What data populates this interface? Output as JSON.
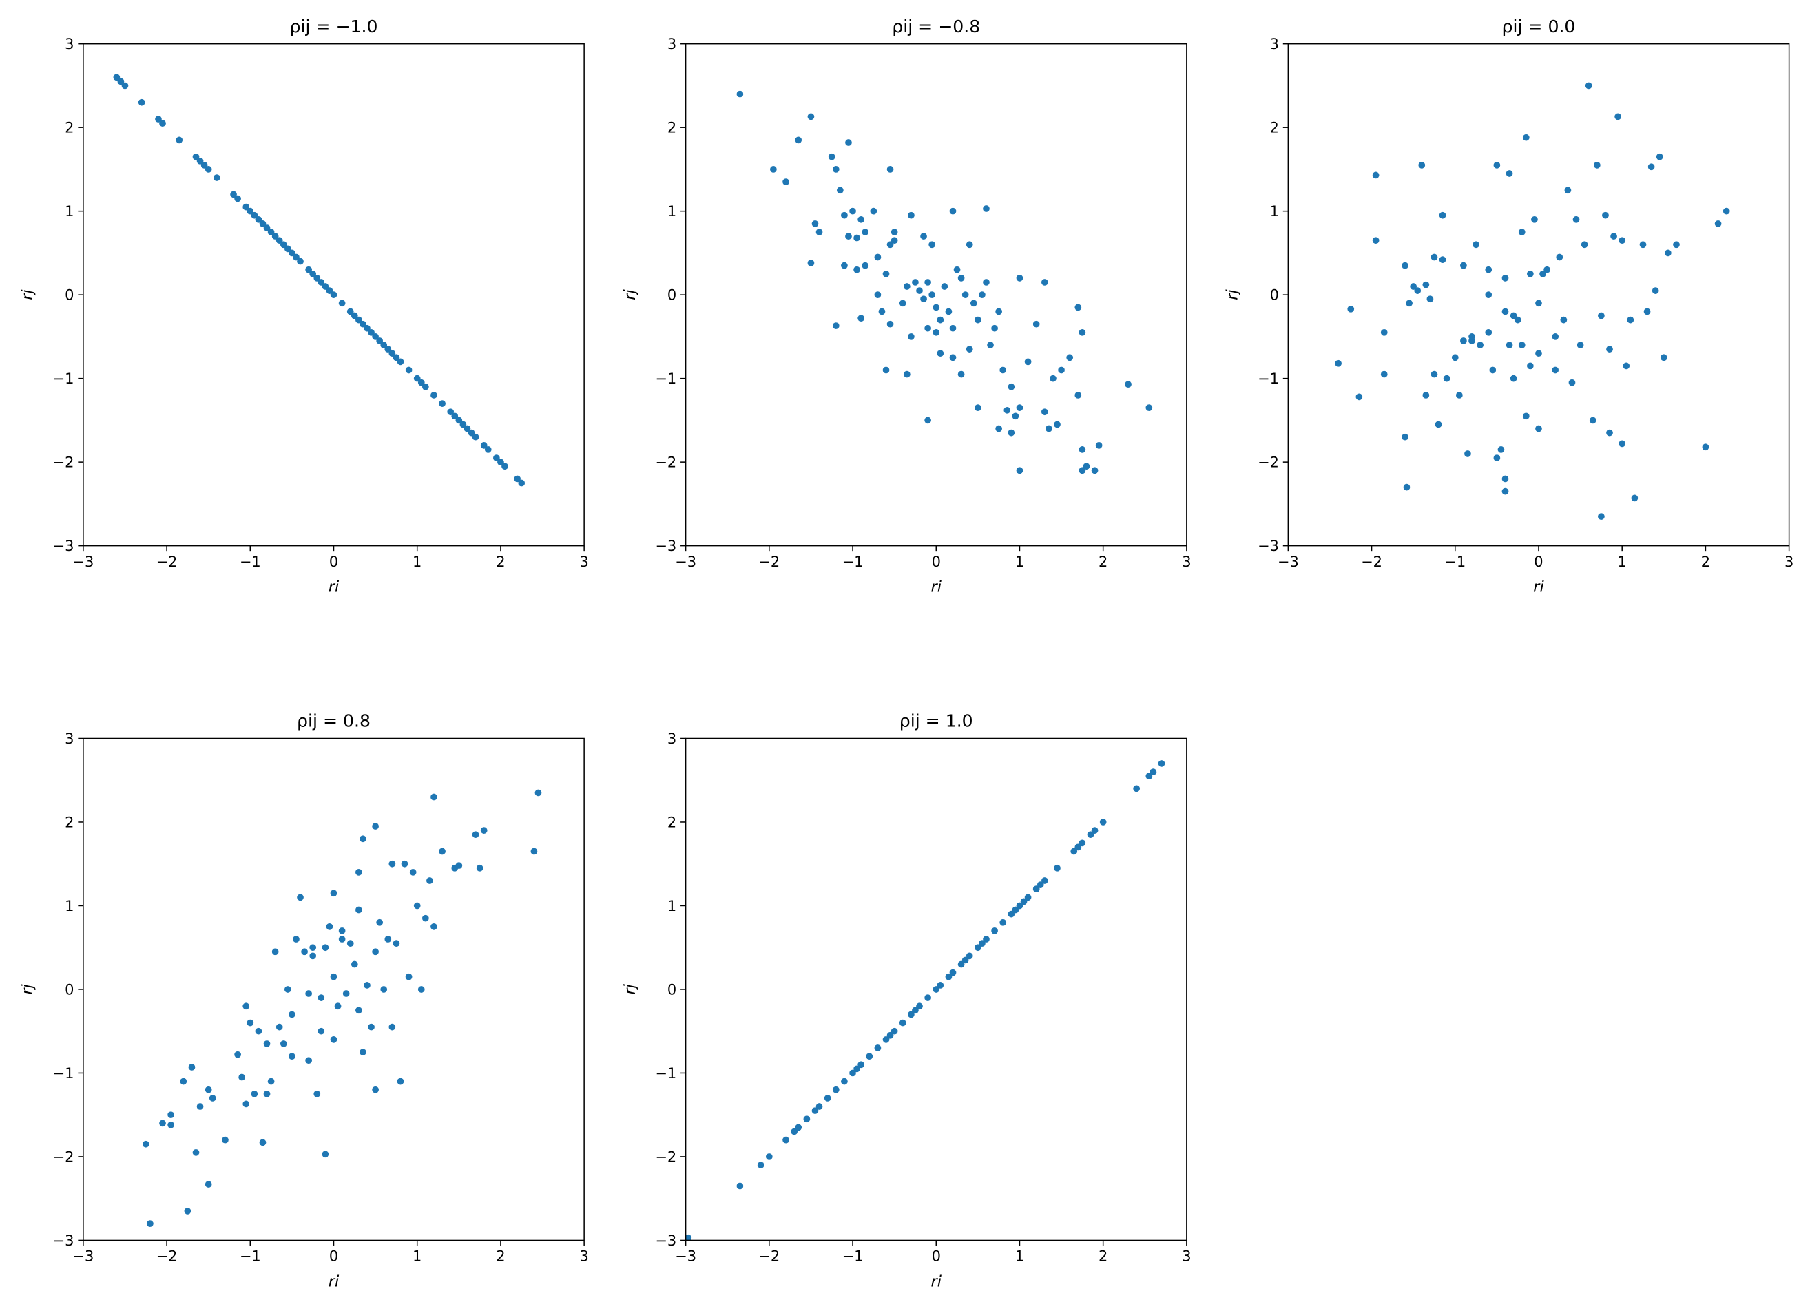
{
  "chart_data": [
    {
      "type": "scatter",
      "title": "ρij = −1.0",
      "x_label": "ri",
      "y_label": "rj",
      "color": "#1f77b4",
      "xlim": [
        -3,
        3
      ],
      "ylim": [
        -3,
        3
      ],
      "xticks": [
        {
          "value": -3,
          "label": "−3"
        },
        {
          "value": -2,
          "label": "−2"
        },
        {
          "value": -1,
          "label": "−1"
        },
        0,
        1,
        2,
        3
      ],
      "yticks": [
        {
          "value": -3,
          "label": "−3"
        },
        {
          "value": -2,
          "label": "−2"
        },
        {
          "value": -1,
          "label": "−1"
        },
        0,
        1,
        2,
        3
      ],
      "x": [
        -2.6,
        -2.55,
        -2.5,
        -2.3,
        -2.1,
        -2.05,
        -1.85,
        -1.65,
        -1.6,
        -1.55,
        -1.5,
        -1.4,
        -1.2,
        -1.15,
        -1.05,
        -1.0,
        -0.95,
        -0.9,
        -0.85,
        -0.8,
        -0.75,
        -0.7,
        -0.65,
        -0.6,
        -0.55,
        -0.5,
        -0.45,
        -0.4,
        -0.3,
        -0.25,
        -0.2,
        -0.15,
        -0.1,
        -0.05,
        0.0,
        0.1,
        0.2,
        0.25,
        0.3,
        0.35,
        0.4,
        0.45,
        0.5,
        0.55,
        0.6,
        0.65,
        0.7,
        0.75,
        0.8,
        0.9,
        1.0,
        1.05,
        1.1,
        1.2,
        1.3,
        1.4,
        1.45,
        1.5,
        1.55,
        1.6,
        1.65,
        1.7,
        1.8,
        1.85,
        1.95,
        2.0,
        2.05,
        2.2,
        2.25
      ],
      "y": [
        2.6,
        2.55,
        2.5,
        2.3,
        2.1,
        2.05,
        1.85,
        1.65,
        1.6,
        1.55,
        1.5,
        1.4,
        1.2,
        1.15,
        1.05,
        1.0,
        0.95,
        0.9,
        0.85,
        0.8,
        0.75,
        0.7,
        0.65,
        0.6,
        0.55,
        0.5,
        0.45,
        0.4,
        0.3,
        0.25,
        0.2,
        0.15,
        0.1,
        0.05,
        0.0,
        -0.1,
        -0.2,
        -0.25,
        -0.3,
        -0.35,
        -0.4,
        -0.45,
        -0.5,
        -0.55,
        -0.6,
        -0.65,
        -0.7,
        -0.75,
        -0.8,
        -0.9,
        -1.0,
        -1.05,
        -1.1,
        -1.2,
        -1.3,
        -1.4,
        -1.45,
        -1.5,
        -1.55,
        -1.6,
        -1.65,
        -1.7,
        -1.8,
        -1.85,
        -1.95,
        -2.0,
        -2.05,
        -2.2,
        -2.25
      ]
    },
    {
      "type": "scatter",
      "title": "ρij = −0.8",
      "x_label": "ri",
      "y_label": "rj",
      "color": "#1f77b4",
      "xlim": [
        -3,
        3
      ],
      "ylim": [
        -3,
        3
      ],
      "xticks": [
        {
          "value": -3,
          "label": "−3"
        },
        {
          "value": -2,
          "label": "−2"
        },
        {
          "value": -1,
          "label": "−1"
        },
        0,
        1,
        2,
        3
      ],
      "yticks": [
        {
          "value": -3,
          "label": "−3"
        },
        {
          "value": -2,
          "label": "−2"
        },
        {
          "value": -1,
          "label": "−1"
        },
        0,
        1,
        2,
        3
      ],
      "x": [
        -2.35,
        -1.95,
        -1.8,
        -1.65,
        -1.5,
        -1.45,
        -1.4,
        -1.5,
        -1.25,
        -1.2,
        -1.15,
        -1.05,
        -1.1,
        -1.0,
        -1.05,
        -0.95,
        -0.9,
        -0.85,
        -0.75,
        -0.55,
        -0.5,
        -0.55,
        -0.5,
        -0.3,
        -0.15,
        -0.05,
        0.2,
        0.6,
        -1.1,
        -0.95,
        -0.85,
        -0.7,
        -0.6,
        -0.9,
        -1.2,
        -0.65,
        -0.7,
        -0.55,
        -0.4,
        -0.35,
        -0.25,
        -0.2,
        -0.15,
        -0.1,
        -0.05,
        0.0,
        0.05,
        0.1,
        0.15,
        0.2,
        0.25,
        0.3,
        0.35,
        0.4,
        0.45,
        0.5,
        0.55,
        0.6,
        0.65,
        0.7,
        0.75,
        0.8,
        0.9,
        1.0,
        1.0,
        1.1,
        1.2,
        1.3,
        1.3,
        1.35,
        1.4,
        1.45,
        1.5,
        1.7,
        1.7,
        1.75,
        1.75,
        1.8,
        1.9,
        1.95,
        2.3,
        2.55,
        -0.1,
        0.3,
        0.2,
        -0.35,
        -0.6,
        0.05,
        0.5,
        0.75,
        0.9,
        1.0,
        1.6,
        1.75,
        0.85,
        0.95,
        0.0,
        -0.3,
        -0.1,
        0.4
      ],
      "y": [
        2.4,
        1.5,
        1.35,
        1.85,
        2.13,
        0.85,
        0.75,
        0.38,
        1.65,
        1.5,
        1.25,
        1.82,
        0.95,
        1.0,
        0.7,
        0.68,
        0.9,
        0.75,
        1.0,
        1.5,
        0.75,
        0.6,
        0.65,
        0.95,
        0.7,
        0.6,
        1.0,
        1.03,
        0.35,
        0.3,
        0.35,
        0.45,
        0.25,
        -0.28,
        -0.37,
        -0.2,
        0.0,
        -0.35,
        -0.1,
        0.1,
        0.15,
        0.05,
        -0.05,
        0.15,
        0.0,
        -0.15,
        -0.3,
        0.1,
        -0.2,
        -0.4,
        0.3,
        0.2,
        0.0,
        0.6,
        -0.1,
        -0.3,
        0.0,
        0.15,
        -0.6,
        -0.4,
        -0.2,
        -0.9,
        -1.1,
        0.2,
        -2.1,
        -0.8,
        -0.35,
        0.15,
        -1.4,
        -1.6,
        -1.0,
        -1.55,
        -0.9,
        -0.15,
        -1.2,
        -1.85,
        -2.1,
        -2.05,
        -2.1,
        -1.8,
        -1.07,
        -1.35,
        -1.5,
        -0.95,
        -0.75,
        -0.95,
        -0.9,
        -0.7,
        -1.35,
        -1.6,
        -1.65,
        -1.35,
        -0.75,
        -0.45,
        -1.38,
        -1.45,
        -0.45,
        -0.5,
        -0.4,
        -0.65
      ]
    },
    {
      "type": "scatter",
      "title": "ρij = 0.0",
      "x_label": "ri",
      "y_label": "rj",
      "color": "#1f77b4",
      "xlim": [
        -3,
        3
      ],
      "ylim": [
        -3,
        3
      ],
      "xticks": [
        {
          "value": -3,
          "label": "−3"
        },
        {
          "value": -2,
          "label": "−2"
        },
        {
          "value": -1,
          "label": "−1"
        },
        0,
        1,
        2,
        3
      ],
      "yticks": [
        {
          "value": -3,
          "label": "−3"
        },
        {
          "value": -2,
          "label": "−2"
        },
        {
          "value": -1,
          "label": "−1"
        },
        0,
        1,
        2,
        3
      ],
      "x": [
        -2.4,
        -2.25,
        -2.15,
        -1.95,
        -1.95,
        -1.85,
        -1.85,
        -1.6,
        -1.58,
        -1.6,
        -1.55,
        -1.5,
        -1.45,
        -1.4,
        -1.35,
        -1.35,
        -1.3,
        -1.25,
        -1.25,
        -1.2,
        -1.15,
        -1.15,
        -1.1,
        -1.0,
        -0.95,
        -0.9,
        -0.9,
        -0.85,
        -0.8,
        -0.75,
        -0.7,
        -0.6,
        -0.6,
        -0.55,
        -0.5,
        -0.5,
        -0.45,
        -0.4,
        -0.4,
        -0.35,
        -0.35,
        -0.3,
        -0.3,
        -0.25,
        -0.2,
        -0.2,
        -0.15,
        -0.1,
        -0.05,
        -0.1,
        0.0,
        0.0,
        0.05,
        0.1,
        0.2,
        0.25,
        0.3,
        0.35,
        0.4,
        0.45,
        0.5,
        0.55,
        0.6,
        0.65,
        0.7,
        0.75,
        0.8,
        0.85,
        0.85,
        0.9,
        0.95,
        1.0,
        1.05,
        1.1,
        1.15,
        1.25,
        1.3,
        1.35,
        1.4,
        1.45,
        1.5,
        1.55,
        1.65,
        2.0,
        2.15,
        2.25,
        0.75,
        -0.4,
        -0.4,
        -0.15,
        0.2,
        -0.6,
        -0.8,
        0.0,
        1.0
      ],
      "y": [
        -0.82,
        -0.17,
        -1.22,
        1.43,
        0.65,
        -0.45,
        -0.95,
        -1.7,
        -2.3,
        0.35,
        -0.1,
        0.1,
        0.05,
        1.55,
        0.12,
        -1.2,
        -0.05,
        0.45,
        -0.95,
        -1.55,
        0.95,
        0.42,
        -1.0,
        -0.75,
        -1.2,
        0.35,
        -0.55,
        -1.9,
        -0.55,
        0.6,
        -0.6,
        -0.45,
        0.3,
        -0.9,
        1.55,
        -1.95,
        -1.85,
        0.2,
        -0.2,
        1.45,
        -0.6,
        -0.25,
        -1.0,
        -0.3,
        0.75,
        -0.6,
        -1.45,
        0.25,
        0.9,
        -0.85,
        -0.1,
        -1.6,
        0.25,
        0.3,
        -0.9,
        0.45,
        -0.3,
        1.25,
        -1.05,
        0.9,
        -0.6,
        0.6,
        2.5,
        -1.5,
        1.55,
        -0.25,
        0.95,
        -0.65,
        -1.65,
        0.7,
        2.13,
        -1.78,
        -0.85,
        -0.3,
        -2.43,
        0.6,
        -0.2,
        1.53,
        0.05,
        1.65,
        -0.75,
        0.5,
        0.6,
        -1.82,
        0.85,
        1.0,
        -2.65,
        -2.35,
        -2.2,
        1.88,
        -0.5,
        0.0,
        -0.5,
        -0.7,
        0.65
      ]
    },
    {
      "type": "scatter",
      "title": "ρij = 0.8",
      "x_label": "ri",
      "y_label": "rj",
      "color": "#1f77b4",
      "xlim": [
        -3,
        3
      ],
      "ylim": [
        -3,
        3
      ],
      "xticks": [
        {
          "value": -3,
          "label": "−3"
        },
        {
          "value": -2,
          "label": "−2"
        },
        {
          "value": -1,
          "label": "−1"
        },
        0,
        1,
        2,
        3
      ],
      "yticks": [
        {
          "value": -3,
          "label": "−3"
        },
        {
          "value": -2,
          "label": "−2"
        },
        {
          "value": -1,
          "label": "−1"
        },
        0,
        1,
        2,
        3
      ],
      "x": [
        -2.25,
        -2.2,
        -2.05,
        -1.95,
        -1.95,
        -1.8,
        -1.75,
        -1.7,
        -1.65,
        -1.6,
        -1.5,
        -1.5,
        -1.45,
        -1.3,
        -1.15,
        -1.1,
        -1.05,
        -1.05,
        -1.0,
        -0.95,
        -0.9,
        -0.85,
        -0.8,
        -0.75,
        -0.7,
        -0.65,
        -0.6,
        -0.55,
        -0.5,
        -0.45,
        -0.4,
        -0.35,
        -0.3,
        -0.3,
        -0.25,
        -0.2,
        -0.15,
        -0.1,
        -0.1,
        -0.05,
        0.0,
        0.0,
        0.05,
        0.1,
        0.15,
        0.2,
        0.25,
        0.3,
        0.35,
        0.35,
        0.4,
        0.45,
        0.5,
        0.5,
        0.55,
        0.6,
        0.65,
        0.7,
        0.75,
        0.8,
        0.85,
        0.9,
        0.95,
        1.0,
        1.05,
        1.1,
        1.15,
        1.2,
        1.2,
        1.3,
        1.45,
        1.5,
        1.7,
        1.75,
        1.8,
        2.4,
        2.45,
        -0.25,
        0.1,
        -0.5,
        -0.8,
        0.3,
        0.7,
        0.0,
        -0.15,
        0.5,
        0.3
      ],
      "y": [
        -1.85,
        -2.8,
        -1.6,
        -1.5,
        -1.62,
        -1.1,
        -2.65,
        -0.93,
        -1.95,
        -1.4,
        -1.2,
        -2.33,
        -1.3,
        -1.8,
        -0.78,
        -1.05,
        -1.37,
        -0.2,
        -0.4,
        -1.25,
        -0.5,
        -1.83,
        -1.25,
        -1.1,
        0.45,
        -0.45,
        -0.65,
        0.0,
        -0.8,
        0.6,
        1.1,
        0.45,
        -0.05,
        -0.85,
        0.4,
        -1.25,
        -0.5,
        0.5,
        -1.97,
        0.75,
        0.15,
        1.15,
        -0.2,
        0.6,
        -0.05,
        0.55,
        0.3,
        1.4,
        1.8,
        -0.75,
        0.05,
        -0.45,
        1.95,
        -1.2,
        0.8,
        0.0,
        0.6,
        -0.45,
        0.55,
        -1.1,
        1.5,
        0.15,
        1.4,
        1.0,
        0.0,
        0.85,
        1.3,
        2.3,
        0.75,
        1.65,
        1.45,
        1.48,
        1.85,
        1.45,
        1.9,
        1.65,
        2.35,
        0.5,
        0.7,
        -0.3,
        -0.65,
        0.95,
        1.5,
        -0.6,
        -0.1,
        0.45,
        -0.25
      ]
    },
    {
      "type": "scatter",
      "title": "ρij = 1.0",
      "x_label": "ri",
      "y_label": "rj",
      "color": "#1f77b4",
      "xlim": [
        -3,
        3
      ],
      "ylim": [
        -3,
        3
      ],
      "xticks": [
        {
          "value": -3,
          "label": "−3"
        },
        {
          "value": -2,
          "label": "−2"
        },
        {
          "value": -1,
          "label": "−1"
        },
        0,
        1,
        2,
        3
      ],
      "yticks": [
        {
          "value": -3,
          "label": "−3"
        },
        {
          "value": -2,
          "label": "−2"
        },
        {
          "value": -1,
          "label": "−1"
        },
        0,
        1,
        2,
        3
      ],
      "x": [
        -2.97,
        -2.35,
        -2.1,
        -2.0,
        -1.8,
        -1.7,
        -1.65,
        -1.55,
        -1.45,
        -1.4,
        -1.3,
        -1.2,
        -1.1,
        -1.0,
        -0.95,
        -0.9,
        -0.8,
        -0.7,
        -0.6,
        -0.55,
        -0.5,
        -0.4,
        -0.3,
        -0.25,
        -0.2,
        -0.1,
        0.0,
        0.05,
        0.15,
        0.2,
        0.3,
        0.35,
        0.4,
        0.5,
        0.55,
        0.6,
        0.7,
        0.8,
        0.9,
        0.95,
        1.0,
        1.05,
        1.1,
        1.2,
        1.25,
        1.3,
        1.45,
        1.65,
        1.7,
        1.75,
        1.85,
        1.9,
        2.0,
        2.4,
        2.55,
        2.6,
        2.7
      ],
      "y": [
        -2.97,
        -2.35,
        -2.1,
        -2.0,
        -1.8,
        -1.7,
        -1.65,
        -1.55,
        -1.45,
        -1.4,
        -1.3,
        -1.2,
        -1.1,
        -1.0,
        -0.95,
        -0.9,
        -0.8,
        -0.7,
        -0.6,
        -0.55,
        -0.5,
        -0.4,
        -0.3,
        -0.25,
        -0.2,
        -0.1,
        0.0,
        0.05,
        0.15,
        0.2,
        0.3,
        0.35,
        0.4,
        0.5,
        0.55,
        0.6,
        0.7,
        0.8,
        0.9,
        0.95,
        1.0,
        1.05,
        1.1,
        1.2,
        1.25,
        1.3,
        1.45,
        1.65,
        1.7,
        1.75,
        1.85,
        1.9,
        2.0,
        2.4,
        2.55,
        2.6,
        2.7
      ]
    }
  ]
}
